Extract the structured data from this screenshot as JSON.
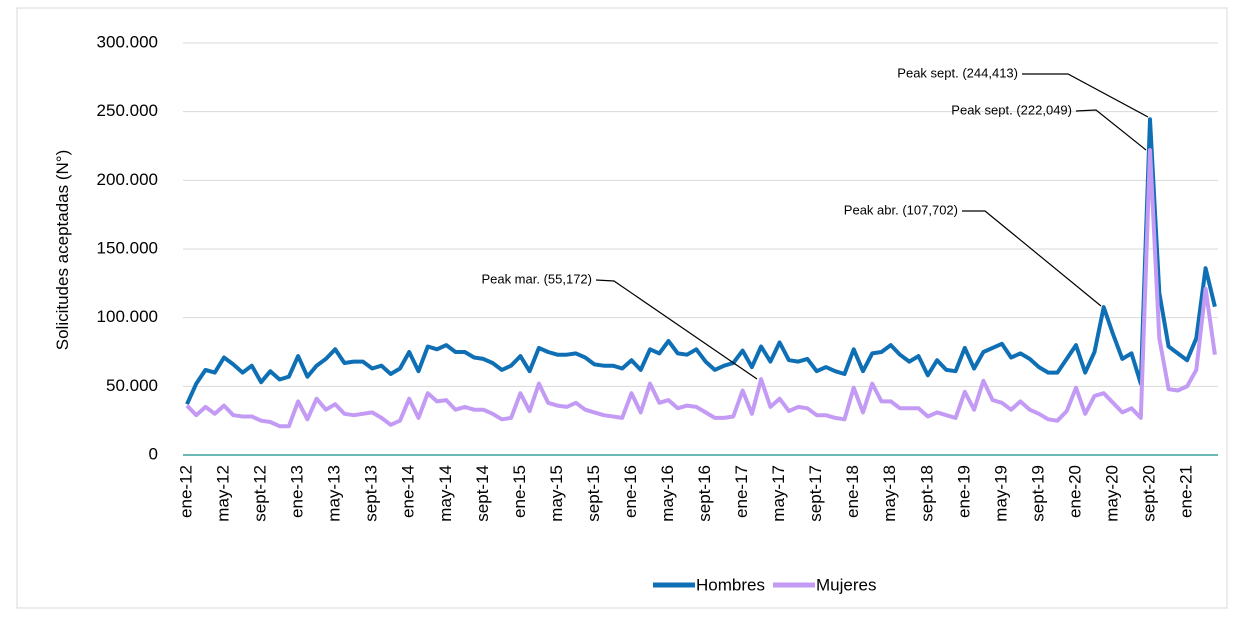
{
  "chart_data": {
    "type": "line",
    "y_label": "Solicitudes aceptadas (N°)",
    "categories": [
      "ene-12",
      null,
      null,
      null,
      "may-12",
      null,
      null,
      null,
      "sept-12",
      null,
      null,
      null,
      "ene-13",
      null,
      null,
      null,
      "may-13",
      null,
      null,
      null,
      "sept-13",
      null,
      null,
      null,
      "ene-14",
      null,
      null,
      null,
      "may-14",
      null,
      null,
      null,
      "sept-14",
      null,
      null,
      null,
      "ene-15",
      null,
      null,
      null,
      "may-15",
      null,
      null,
      null,
      "sept-15",
      null,
      null,
      null,
      "ene-16",
      null,
      null,
      null,
      "may-16",
      null,
      null,
      null,
      "sept-16",
      null,
      null,
      null,
      "ene-17",
      null,
      null,
      null,
      "may-17",
      null,
      null,
      null,
      "sept-17",
      null,
      null,
      null,
      "ene-18",
      null,
      null,
      null,
      "may-18",
      null,
      null,
      null,
      "sept-18",
      null,
      null,
      null,
      "ene-19",
      null,
      null,
      null,
      "may-19",
      null,
      null,
      null,
      "sept-19",
      null,
      null,
      null,
      "ene-20",
      null,
      null,
      null,
      "may-20",
      null,
      null,
      null,
      "sept-20",
      null,
      null,
      null,
      "ene-21",
      null,
      null,
      null
    ],
    "series": [
      {
        "name": "Hombres",
        "color": "#0f6fb5",
        "values": [
          37000,
          52000,
          62000,
          60000,
          71000,
          66000,
          60000,
          65000,
          53000,
          61000,
          55000,
          57000,
          72000,
          57000,
          65000,
          70000,
          77000,
          67000,
          68000,
          68000,
          63000,
          65000,
          59000,
          63000,
          75000,
          61000,
          79000,
          77000,
          80000,
          75000,
          75000,
          71000,
          70000,
          67000,
          62000,
          65000,
          72000,
          61000,
          78000,
          75000,
          73000,
          73000,
          74000,
          71000,
          66000,
          65000,
          65000,
          63000,
          69000,
          62000,
          77000,
          74000,
          83000,
          74000,
          73000,
          77000,
          68000,
          62000,
          65000,
          67000,
          76000,
          64000,
          79000,
          68000,
          82000,
          69000,
          68000,
          70000,
          61000,
          64000,
          61000,
          59000,
          77000,
          61000,
          74000,
          75000,
          80000,
          73000,
          68000,
          72000,
          58000,
          69000,
          62000,
          61000,
          78000,
          63000,
          75000,
          78000,
          81000,
          71000,
          74000,
          70000,
          64000,
          60000,
          60000,
          70000,
          80000,
          60000,
          75000,
          107702,
          88000,
          70000,
          74000,
          52000,
          244413,
          118000,
          79000,
          74000,
          69000,
          85000,
          136000,
          108000
        ]
      },
      {
        "name": "Mujeres",
        "color": "#c39bf5",
        "values": [
          36000,
          29000,
          35000,
          30000,
          36000,
          29000,
          28000,
          28000,
          25000,
          24000,
          21000,
          21000,
          39000,
          26000,
          41000,
          33000,
          37000,
          30000,
          29000,
          30000,
          31000,
          27000,
          22000,
          25000,
          41000,
          27000,
          45000,
          39000,
          40000,
          33000,
          35000,
          33000,
          33000,
          30000,
          26000,
          27000,
          45000,
          32000,
          52000,
          38000,
          36000,
          35000,
          38000,
          33000,
          31000,
          29000,
          28000,
          27000,
          45000,
          31000,
          52000,
          38000,
          40000,
          34000,
          36000,
          35000,
          31000,
          27000,
          27000,
          28000,
          47000,
          30000,
          55172,
          35000,
          41000,
          32000,
          35000,
          34000,
          29000,
          29000,
          27000,
          26000,
          49000,
          31000,
          52000,
          39000,
          39000,
          34000,
          34000,
          34000,
          28000,
          31000,
          29000,
          27000,
          46000,
          33000,
          54000,
          40000,
          38000,
          33000,
          39000,
          33000,
          30000,
          26000,
          25000,
          32000,
          49000,
          30000,
          43000,
          45000,
          38000,
          31000,
          34000,
          27000,
          222049,
          85000,
          48000,
          47000,
          50000,
          62000,
          121000,
          73000
        ]
      }
    ],
    "ylim": [
      0,
      300000
    ],
    "yticks": [
      {
        "value": 0,
        "label": "0"
      },
      {
        "value": 50000,
        "label": "50.000"
      },
      {
        "value": 100000,
        "label": "100.000"
      },
      {
        "value": 150000,
        "label": "150.000"
      },
      {
        "value": 200000,
        "label": "200.000"
      },
      {
        "value": 250000,
        "label": "250.000"
      },
      {
        "value": 300000,
        "label": "300.000"
      }
    ],
    "grid": true,
    "legend": "bottom",
    "annotations": [
      "Peak sept. (244,413)",
      "Peak sept. (222,049)",
      "Peak abr. (107,702)",
      "Peak mar. (55,172)"
    ]
  }
}
